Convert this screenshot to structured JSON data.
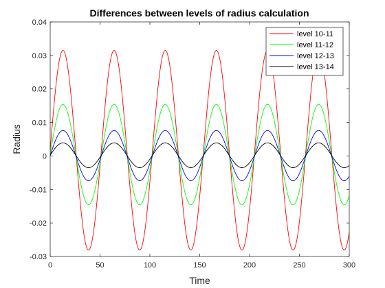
{
  "chart_data": {
    "type": "line",
    "title": "Differences between levels of radius calculation",
    "xlabel": "Time",
    "ylabel": "Radius",
    "xlim": [
      0,
      300
    ],
    "ylim": [
      -0.03,
      0.04
    ],
    "xticks": [
      0,
      50,
      100,
      150,
      200,
      250,
      300
    ],
    "yticks": [
      -0.03,
      -0.02,
      -0.01,
      0,
      0.01,
      0.02,
      0.03,
      0.04
    ],
    "xtick_labels": [
      "0",
      "50",
      "100",
      "150",
      "200",
      "250",
      "300"
    ],
    "ytick_labels": [
      "-0.03",
      "-0.02",
      "-0.01",
      "0",
      "0.01",
      "0.02",
      "0.03",
      "0.04"
    ],
    "grid": false,
    "legend_position": "top-right",
    "period": 51.3,
    "series": [
      {
        "name": "level 10-11",
        "color": "#ff0000",
        "offset": 0.0017,
        "amplitude": 0.0298
      },
      {
        "name": "level 11-12",
        "color": "#00ff00",
        "offset": 0.0004,
        "amplitude": 0.015
      },
      {
        "name": "level 12-13",
        "color": "#0000ff",
        "offset": 0.0001,
        "amplitude": 0.0075
      },
      {
        "name": "level 13-14",
        "color": "#000000",
        "offset": 0.0002,
        "amplitude": 0.0037
      }
    ]
  }
}
